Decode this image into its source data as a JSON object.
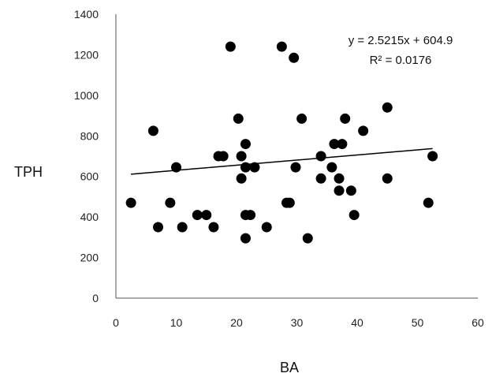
{
  "chart_data": {
    "type": "scatter",
    "xlabel": "BA",
    "ylabel": "TPH",
    "xlim": [
      0,
      60
    ],
    "ylim": [
      0,
      1400
    ],
    "x_ticks": [
      0,
      10,
      20,
      30,
      40,
      50,
      60
    ],
    "y_ticks": [
      0,
      200,
      400,
      600,
      800,
      1000,
      1200,
      1400
    ],
    "grid": false,
    "marker_color": "#000000",
    "trendline": {
      "slope": 2.5215,
      "intercept": 604.9,
      "x_range": [
        2.5,
        52.5
      ],
      "equation": "y = 2.5215x + 604.9",
      "r_squared": "R² = 0.0176"
    },
    "points": [
      [
        2.5,
        470
      ],
      [
        6.2,
        825
      ],
      [
        7.0,
        350
      ],
      [
        9.0,
        470
      ],
      [
        10.0,
        645
      ],
      [
        11.0,
        350
      ],
      [
        13.5,
        410
      ],
      [
        15.0,
        410
      ],
      [
        16.2,
        350
      ],
      [
        17.0,
        700
      ],
      [
        17.8,
        700
      ],
      [
        19.0,
        1240
      ],
      [
        20.3,
        885
      ],
      [
        20.8,
        700
      ],
      [
        20.8,
        590
      ],
      [
        21.5,
        760
      ],
      [
        21.5,
        645
      ],
      [
        21.5,
        410
      ],
      [
        21.5,
        295
      ],
      [
        22.3,
        410
      ],
      [
        23.0,
        645
      ],
      [
        25.0,
        350
      ],
      [
        27.5,
        1240
      ],
      [
        28.3,
        470
      ],
      [
        28.8,
        470
      ],
      [
        29.5,
        1185
      ],
      [
        29.8,
        645
      ],
      [
        30.8,
        885
      ],
      [
        31.8,
        295
      ],
      [
        34.0,
        590
      ],
      [
        34.0,
        700
      ],
      [
        35.8,
        645
      ],
      [
        36.2,
        760
      ],
      [
        37.0,
        590
      ],
      [
        37.0,
        530
      ],
      [
        37.5,
        760
      ],
      [
        38.0,
        885
      ],
      [
        39.0,
        530
      ],
      [
        39.5,
        410
      ],
      [
        41.0,
        825
      ],
      [
        45.0,
        940
      ],
      [
        45.0,
        590
      ],
      [
        51.8,
        470
      ],
      [
        52.5,
        700
      ]
    ]
  }
}
